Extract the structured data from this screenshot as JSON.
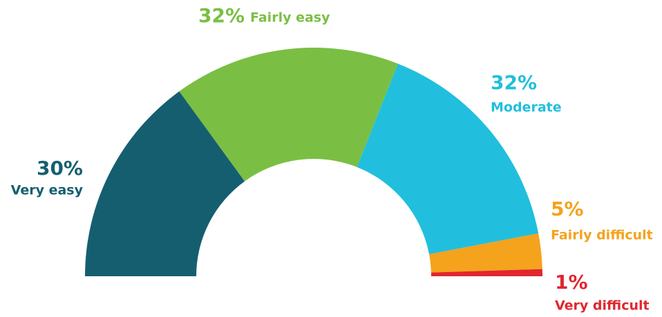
{
  "chart_data": {
    "type": "donut",
    "categories": [
      "Very easy",
      "Fairly easy",
      "Moderate",
      "Fairly difficult",
      "Very difficult"
    ],
    "values": [
      30,
      32,
      32,
      5,
      1
    ],
    "value_labels": [
      "30%",
      "32%",
      "32%",
      "5%",
      "1%"
    ],
    "colors": [
      "#155e70",
      "#7abf43",
      "#21bfdd",
      "#f5a21d",
      "#e0262e"
    ]
  }
}
